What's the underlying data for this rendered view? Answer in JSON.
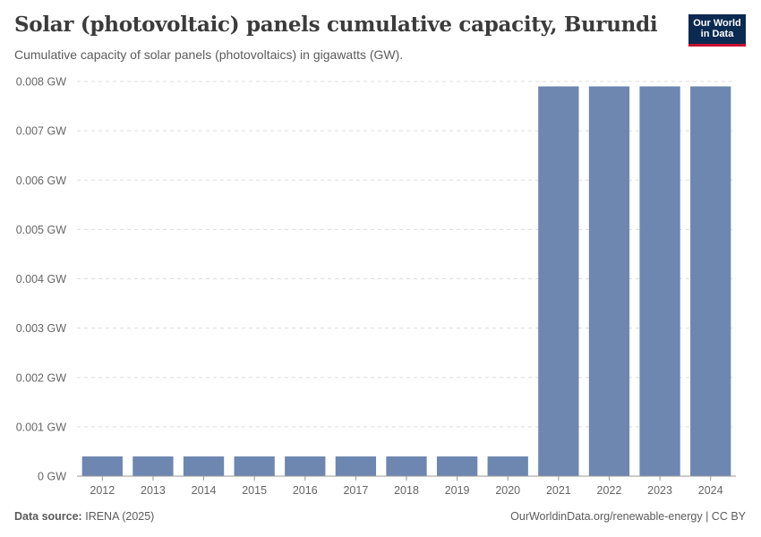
{
  "header": {
    "title": "Solar (photovoltaic) panels cumulative capacity, Burundi",
    "subtitle": "Cumulative capacity of solar panels (photovoltaics) in gigawatts (GW)."
  },
  "logo": {
    "line1": "Our World",
    "line2": "in Data",
    "bg_color": "#0b2a52",
    "accent_color": "#c8102e"
  },
  "footer": {
    "source_label": "Data source:",
    "source_value": "IRENA (2025)",
    "right_text": "OurWorldinData.org/renewable-energy | CC BY"
  },
  "chart_data": {
    "type": "bar",
    "title": "Solar (photovoltaic) panels cumulative capacity, Burundi",
    "subtitle": "Cumulative capacity of solar panels (photovoltaics) in gigawatts (GW).",
    "categories": [
      "2012",
      "2013",
      "2014",
      "2015",
      "2016",
      "2017",
      "2018",
      "2019",
      "2020",
      "2021",
      "2022",
      "2023",
      "2024"
    ],
    "values": [
      0.0004,
      0.0004,
      0.0004,
      0.0004,
      0.0004,
      0.0004,
      0.0004,
      0.0004,
      0.0004,
      0.0079,
      0.0079,
      0.0079,
      0.0079
    ],
    "y_ticks": [
      "0 GW",
      "0.001 GW",
      "0.002 GW",
      "0.003 GW",
      "0.004 GW",
      "0.005 GW",
      "0.006 GW",
      "0.007 GW",
      "0.008 GW"
    ],
    "ylim": [
      0,
      0.008
    ],
    "grid": true,
    "bar_color": "#6d87b1"
  }
}
